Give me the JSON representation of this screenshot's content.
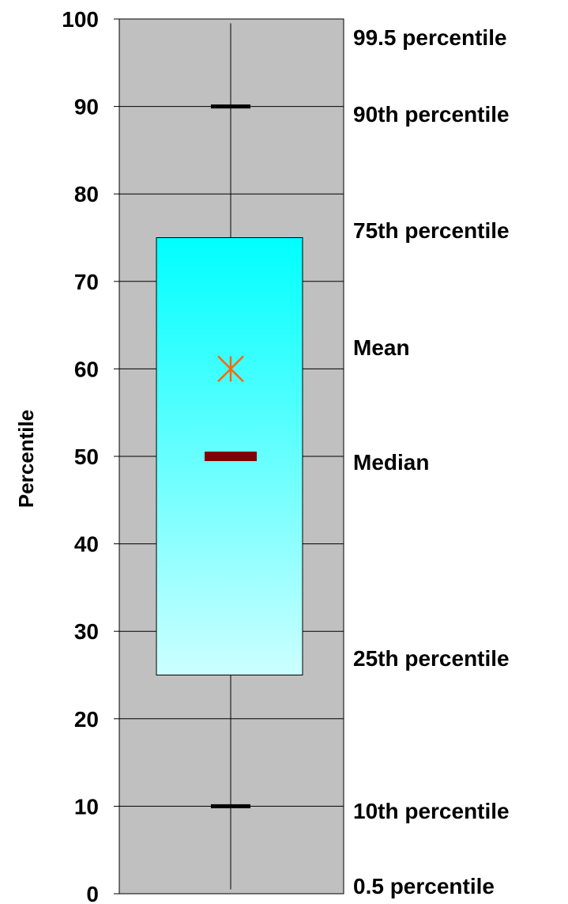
{
  "chart_data": {
    "type": "box",
    "title": "",
    "xlabel": "",
    "ylabel": "Percentile",
    "ylim": [
      0,
      100
    ],
    "yticks": [
      "0",
      "10",
      "20",
      "30",
      "40",
      "50",
      "60",
      "70",
      "80",
      "90",
      "100"
    ],
    "grid": true,
    "box": {
      "p0_5": 0.5,
      "p10": 10,
      "p25": 25,
      "median": 50,
      "mean": 60,
      "p75": 75,
      "p90": 90,
      "p99_5": 99.5
    },
    "annotations": [
      {
        "label": "99.5 percentile",
        "value": 99.5
      },
      {
        "label": "90th percentile",
        "value": 90
      },
      {
        "label": "75th percentile",
        "value": 75
      },
      {
        "label": "Mean",
        "value": 60
      },
      {
        "label": "Median",
        "value": 50
      },
      {
        "label": "25th percentile",
        "value": 25
      },
      {
        "label": "10th percentile",
        "value": 10
      },
      {
        "label": "0.5 percentile",
        "value": 0.5
      }
    ],
    "colors": {
      "plot_background": "#c0c0c0",
      "box_top": "#00ffff",
      "box_bottom": "#ccffff",
      "median_marker": "#800000",
      "mean_marker": "#ff6600",
      "whisker": "#000000",
      "gridline": "#000000"
    }
  }
}
